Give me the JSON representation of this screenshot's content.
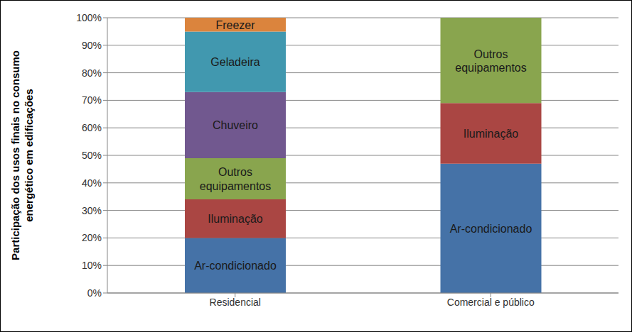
{
  "chart_data": {
    "type": "bar",
    "stacked": true,
    "grid": true,
    "orientation": "vertical",
    "y_label": "Participação dos usos finais no consumo energético em edificações",
    "categories": [
      "Residencial",
      "Comercial e público"
    ],
    "series": [
      {
        "name": "Ar-condicionado",
        "color": "#4572A7",
        "values": [
          20,
          47
        ]
      },
      {
        "name": "Iluminação",
        "color": "#AA4643",
        "values": [
          14,
          22
        ]
      },
      {
        "name": "Outros equipamentos",
        "color": "#89A54E",
        "values": [
          15,
          31
        ]
      },
      {
        "name": "Chuveiro",
        "color": "#71588F",
        "values": [
          24,
          null
        ]
      },
      {
        "name": "Geladeira",
        "color": "#4198AF",
        "values": [
          22,
          null
        ]
      },
      {
        "name": "Freezer",
        "color": "#DB843D",
        "values": [
          5,
          null
        ]
      }
    ],
    "ylim": [
      0,
      100
    ],
    "yticks": [
      {
        "value": 0,
        "label": "0%"
      },
      {
        "value": 10,
        "label": "10%"
      },
      {
        "value": 20,
        "label": "20%"
      },
      {
        "value": 30,
        "label": "30%"
      },
      {
        "value": 40,
        "label": "40%"
      },
      {
        "value": 50,
        "label": "50%"
      },
      {
        "value": 60,
        "label": "60%"
      },
      {
        "value": 70,
        "label": "70%"
      },
      {
        "value": 80,
        "label": "80%"
      },
      {
        "value": 90,
        "label": "90%"
      },
      {
        "value": 100,
        "label": "100%"
      }
    ]
  }
}
